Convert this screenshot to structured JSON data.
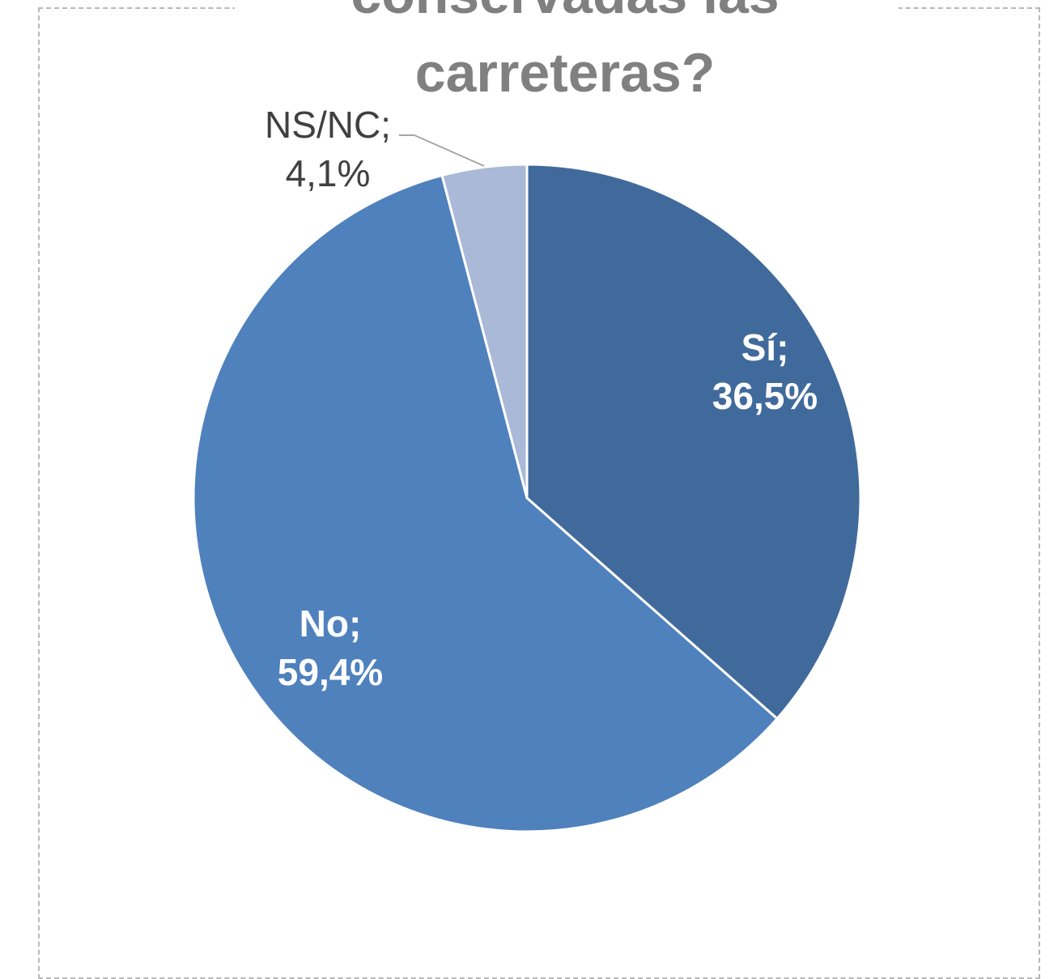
{
  "chart_data": {
    "type": "pie",
    "title_lines": [
      "conservadas las",
      "carreteras?"
    ],
    "slices": [
      {
        "name": "Sí",
        "value": 36.5,
        "label_lines": [
          "Sí;",
          "36,5%"
        ],
        "color": "#416A9C"
      },
      {
        "name": "No",
        "value": 59.4,
        "label_lines": [
          "No;",
          "59,4%"
        ],
        "color": "#4F81BD"
      },
      {
        "name": "NS/NC",
        "value": 4.1,
        "label_lines": [
          "NS/NC;",
          "4,1%"
        ],
        "color": "#A9B9D7"
      }
    ],
    "start_angle": "12 o'clock",
    "direction": "clockwise",
    "legend": "none"
  }
}
